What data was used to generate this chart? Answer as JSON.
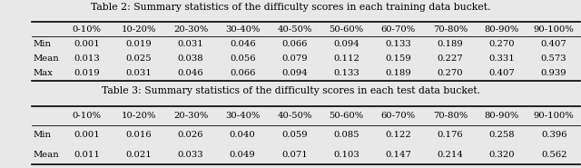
{
  "table2_title": "Table 2: Summary statistics of the difficulty scores in each training data bucket.",
  "table3_title": "Table 3: Summary statistics of the difficulty scores in each test data bucket.",
  "columns": [
    "",
    "0-10%",
    "10-20%",
    "20-30%",
    "30-40%",
    "40-50%",
    "50-60%",
    "60-70%",
    "70-80%",
    "80-90%",
    "90-100%"
  ],
  "table2_rows": [
    [
      "Min",
      "0.001",
      "0.019",
      "0.031",
      "0.046",
      "0.066",
      "0.094",
      "0.133",
      "0.189",
      "0.270",
      "0.407"
    ],
    [
      "Mean",
      "0.013",
      "0.025",
      "0.038",
      "0.056",
      "0.079",
      "0.112",
      "0.159",
      "0.227",
      "0.331",
      "0.573"
    ],
    [
      "Max",
      "0.019",
      "0.031",
      "0.046",
      "0.066",
      "0.094",
      "0.133",
      "0.189",
      "0.270",
      "0.407",
      "0.939"
    ]
  ],
  "table3_rows": [
    [
      "Min",
      "0.001",
      "0.016",
      "0.026",
      "0.040",
      "0.059",
      "0.085",
      "0.122",
      "0.176",
      "0.258",
      "0.396"
    ],
    [
      "Mean",
      "0.011",
      "0.021",
      "0.033",
      "0.049",
      "0.071",
      "0.103",
      "0.147",
      "0.214",
      "0.320",
      "0.562"
    ]
  ],
  "bg_color": "#e8e8e8",
  "font_size": 7.2,
  "title_font_size": 7.8
}
